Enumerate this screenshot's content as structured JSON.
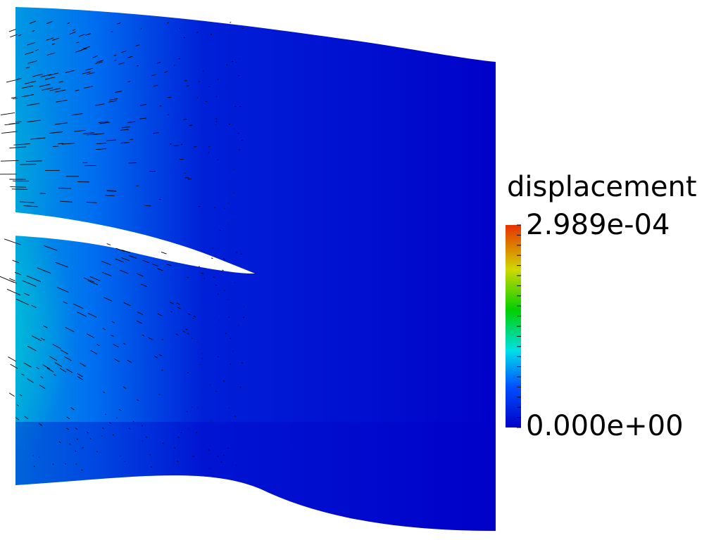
{
  "legend": {
    "title": "displacement",
    "max_label": "2.989e-04",
    "min_label": "0.000e+00",
    "colormap": [
      "#0000c8",
      "#0050ff",
      "#00e0e8",
      "#00d000",
      "#d0d800",
      "#e83000"
    ]
  },
  "field_colors": {
    "low": "#0000c8",
    "mid": "#00d0d0",
    "green": "#10c010",
    "yellow": "#c8c800",
    "high": "#e00000"
  },
  "glyph": {
    "color": "#000000",
    "icon": "arrow-glyph"
  }
}
